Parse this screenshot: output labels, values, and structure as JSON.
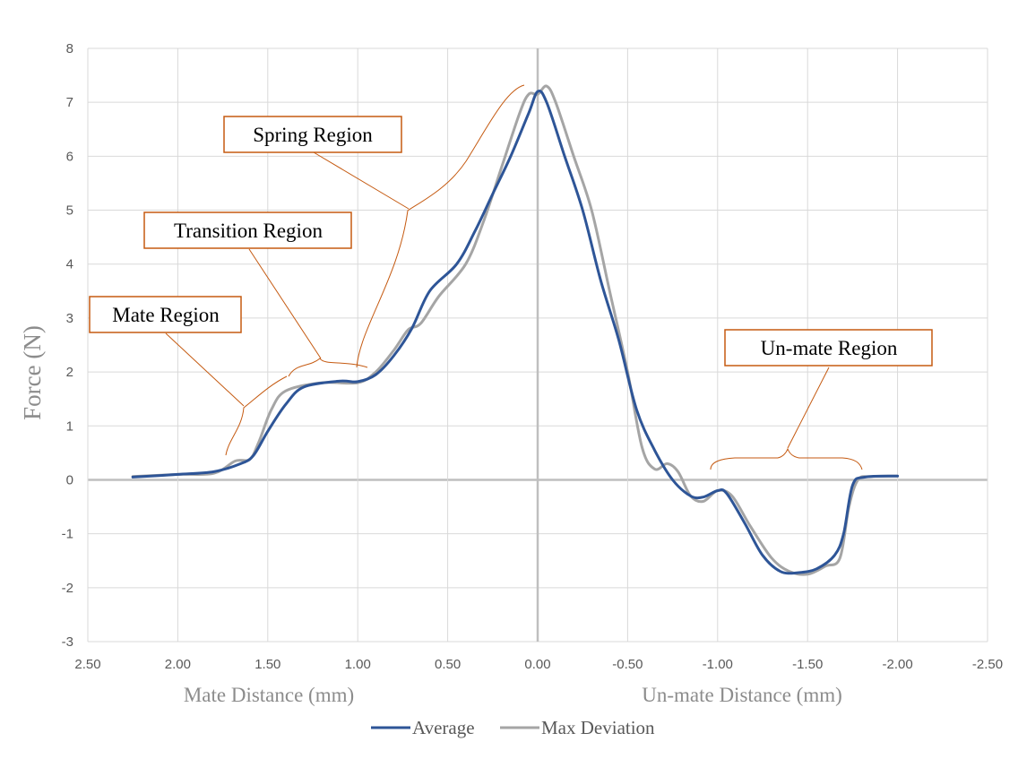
{
  "chart_data": {
    "type": "line",
    "title": "",
    "ylabel": "Force (N)",
    "xlabel_left": "Mate Distance  (mm)",
    "xlabel_right": "Un-mate Distance (mm)",
    "xlim": [
      2.5,
      -2.5
    ],
    "ylim": [
      -3,
      8
    ],
    "x_ticks": [
      2.5,
      2.0,
      1.5,
      1.0,
      0.5,
      0.0,
      -0.5,
      -1.0,
      -1.5,
      -2.0,
      -2.5
    ],
    "x_tick_labels": [
      "2.50",
      "2.00",
      "1.50",
      "1.00",
      "0.50",
      "0.00",
      "-0.50",
      "-1.00",
      "-1.50",
      "-2.00",
      "-2.50"
    ],
    "y_ticks": [
      -3,
      -2,
      -1,
      0,
      1,
      2,
      3,
      4,
      5,
      6,
      7,
      8
    ],
    "y_tick_labels": [
      "-3",
      "-2",
      "-1",
      "0",
      "1",
      "2",
      "3",
      "4",
      "5",
      "6",
      "7",
      "8"
    ],
    "grid": true,
    "legend_position": "bottom-center",
    "series": [
      {
        "name": "Average",
        "color": "#2e5597",
        "points": [
          [
            2.25,
            0.05
          ],
          [
            2.0,
            0.1
          ],
          [
            1.8,
            0.15
          ],
          [
            1.65,
            0.3
          ],
          [
            1.58,
            0.45
          ],
          [
            1.5,
            0.9
          ],
          [
            1.4,
            1.4
          ],
          [
            1.3,
            1.72
          ],
          [
            1.1,
            1.83
          ],
          [
            1.0,
            1.82
          ],
          [
            0.9,
            1.95
          ],
          [
            0.8,
            2.3
          ],
          [
            0.7,
            2.8
          ],
          [
            0.6,
            3.5
          ],
          [
            0.45,
            4.0
          ],
          [
            0.35,
            4.6
          ],
          [
            0.25,
            5.3
          ],
          [
            0.15,
            6.0
          ],
          [
            0.05,
            6.8
          ],
          [
            0.0,
            7.2
          ],
          [
            -0.05,
            7.0
          ],
          [
            -0.15,
            6.0
          ],
          [
            -0.25,
            5.0
          ],
          [
            -0.35,
            3.7
          ],
          [
            -0.45,
            2.6
          ],
          [
            -0.55,
            1.3
          ],
          [
            -0.65,
            0.55
          ],
          [
            -0.75,
            0.0
          ],
          [
            -0.85,
            -0.3
          ],
          [
            -0.92,
            -0.32
          ],
          [
            -1.0,
            -0.2
          ],
          [
            -1.05,
            -0.25
          ],
          [
            -1.15,
            -0.8
          ],
          [
            -1.25,
            -1.4
          ],
          [
            -1.35,
            -1.7
          ],
          [
            -1.45,
            -1.72
          ],
          [
            -1.55,
            -1.65
          ],
          [
            -1.65,
            -1.4
          ],
          [
            -1.7,
            -1.0
          ],
          [
            -1.75,
            -0.1
          ],
          [
            -1.82,
            0.05
          ],
          [
            -2.0,
            0.07
          ]
        ]
      },
      {
        "name": "Max Deviation",
        "color": "#a5a5a5",
        "points": [
          [
            2.25,
            0.06
          ],
          [
            2.0,
            0.1
          ],
          [
            1.8,
            0.12
          ],
          [
            1.68,
            0.35
          ],
          [
            1.6,
            0.38
          ],
          [
            1.55,
            0.7
          ],
          [
            1.48,
            1.3
          ],
          [
            1.4,
            1.65
          ],
          [
            1.2,
            1.8
          ],
          [
            1.0,
            1.8
          ],
          [
            0.9,
            2.0
          ],
          [
            0.8,
            2.4
          ],
          [
            0.72,
            2.78
          ],
          [
            0.65,
            2.9
          ],
          [
            0.55,
            3.4
          ],
          [
            0.4,
            4.0
          ],
          [
            0.3,
            4.8
          ],
          [
            0.2,
            5.8
          ],
          [
            0.1,
            6.8
          ],
          [
            0.05,
            7.15
          ],
          [
            0.0,
            7.15
          ],
          [
            -0.05,
            7.3
          ],
          [
            -0.1,
            7.0
          ],
          [
            -0.2,
            6.0
          ],
          [
            -0.3,
            5.0
          ],
          [
            -0.4,
            3.5
          ],
          [
            -0.5,
            2.0
          ],
          [
            -0.58,
            0.6
          ],
          [
            -0.65,
            0.2
          ],
          [
            -0.72,
            0.3
          ],
          [
            -0.78,
            0.15
          ],
          [
            -0.85,
            -0.3
          ],
          [
            -0.92,
            -0.4
          ],
          [
            -1.0,
            -0.2
          ],
          [
            -1.08,
            -0.3
          ],
          [
            -1.18,
            -0.85
          ],
          [
            -1.3,
            -1.45
          ],
          [
            -1.4,
            -1.7
          ],
          [
            -1.5,
            -1.75
          ],
          [
            -1.6,
            -1.6
          ],
          [
            -1.68,
            -1.45
          ],
          [
            -1.73,
            -0.5
          ],
          [
            -1.78,
            0.0
          ],
          [
            -1.85,
            0.06
          ],
          [
            -2.0,
            0.07
          ]
        ]
      }
    ],
    "annotations": [
      {
        "text": "Spring Region"
      },
      {
        "text": "Transition Region"
      },
      {
        "text": "Mate Region"
      },
      {
        "text": "Un-mate Region"
      }
    ],
    "callout_color": "#c55a11"
  }
}
